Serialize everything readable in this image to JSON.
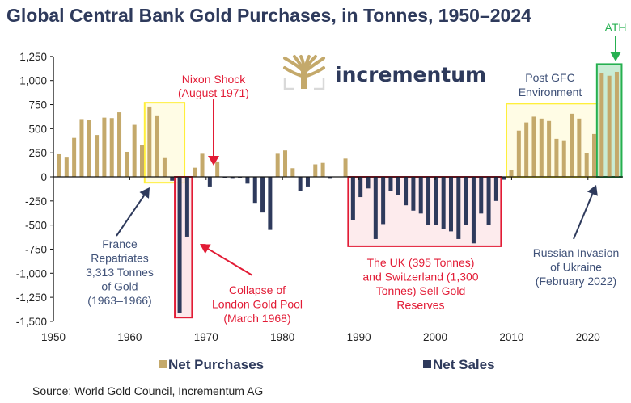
{
  "chart_data": {
    "type": "bar",
    "title": "Global Central Bank Gold Purchases, in Tonnes, 1950–2024",
    "xlabel": "",
    "ylabel": "",
    "ylim": [
      -1500,
      1250
    ],
    "yticks": [
      1250,
      1000,
      750,
      500,
      250,
      0,
      -250,
      -500,
      -750,
      -1000,
      -1250,
      -1500
    ],
    "ytick_labels": [
      "1,250",
      "1,000",
      "750",
      "500",
      "250",
      "0",
      "-250",
      "-500",
      "-750",
      "-1,000",
      "-1,250",
      "-1,500"
    ],
    "xticks": [
      1950,
      1960,
      1970,
      1980,
      1990,
      2000,
      2010,
      2020
    ],
    "xtick_labels": [
      "1950",
      "1960",
      "1970",
      "1980",
      "1990",
      "2000",
      "2010",
      "2020"
    ],
    "grid": false,
    "legend_position": "bottom",
    "colors": {
      "purchases": "#c4a96b",
      "sales": "#2e3a5c"
    },
    "series": [
      {
        "name": "Net Purchases",
        "color": "#c4a96b"
      },
      {
        "name": "Net Sales",
        "color": "#2e3a5c"
      }
    ],
    "x": [
      1950,
      1951,
      1952,
      1953,
      1954,
      1955,
      1956,
      1957,
      1958,
      1959,
      1960,
      1961,
      1962,
      1963,
      1964,
      1965,
      1966,
      1967,
      1968,
      1969,
      1970,
      1971,
      1972,
      1973,
      1974,
      1975,
      1976,
      1977,
      1978,
      1979,
      1980,
      1981,
      1982,
      1983,
      1984,
      1985,
      1986,
      1987,
      1988,
      1989,
      1990,
      1991,
      1992,
      1993,
      1994,
      1995,
      1996,
      1997,
      1998,
      1999,
      2000,
      2001,
      2002,
      2003,
      2004,
      2005,
      2006,
      2007,
      2008,
      2009,
      2010,
      2011,
      2012,
      2013,
      2014,
      2015,
      2016,
      2017,
      2018,
      2019,
      2020,
      2021,
      2022,
      2023,
      2024
    ],
    "values": [
      235,
      200,
      405,
      600,
      590,
      435,
      615,
      610,
      670,
      260,
      540,
      330,
      730,
      630,
      195,
      -40,
      -1410,
      -620,
      95,
      240,
      -100,
      160,
      -10,
      -20,
      -10,
      -70,
      -270,
      -370,
      -550,
      240,
      275,
      90,
      -150,
      -100,
      130,
      145,
      -20,
      0,
      190,
      -445,
      -210,
      -120,
      -645,
      -490,
      -150,
      -185,
      -295,
      -350,
      -380,
      -495,
      -500,
      -540,
      -565,
      -645,
      -495,
      -690,
      -380,
      -500,
      -250,
      -30,
      75,
      480,
      565,
      625,
      605,
      580,
      395,
      380,
      655,
      605,
      250,
      445,
      1080,
      1050,
      1090
    ],
    "highlight_boxes": [
      {
        "name": "france-box",
        "from": 1962,
        "to": 1966,
        "ymin": -60,
        "ymax": 770,
        "color": "#ffef3b",
        "fill": "#fffbe0"
      },
      {
        "name": "london-pool-box",
        "from": 1966,
        "to": 1967,
        "ymin": -1460,
        "ymax": 0,
        "color": "#e21b35",
        "fill": "#fbe3e6"
      },
      {
        "name": "uk-swiss-box",
        "from": 1989,
        "to": 2008,
        "ymin": -720,
        "ymax": 0,
        "color": "#e21b35",
        "fill": "#fde8ea"
      },
      {
        "name": "post-gfc-box",
        "from": 2010,
        "to": 2021,
        "ymin": 0,
        "ymax": 760,
        "color": "#ffef3b",
        "fill": "#fffbe0"
      },
      {
        "name": "ath-box",
        "from": 2022,
        "to": 2024,
        "ymin": 0,
        "ymax": 1170,
        "color": "#26b050",
        "fill": "#bfe9cc"
      }
    ],
    "annotations": [
      {
        "name": "nixon-shock",
        "lines": [
          "Nixon Shock",
          "(August 1971)"
        ],
        "color": "#e21b35"
      },
      {
        "name": "france-repatriates",
        "lines": [
          "France",
          "Repatriates",
          "3,313 Tonnes",
          "of Gold",
          "(1963–1966)"
        ],
        "color": "#3f5178"
      },
      {
        "name": "london-gold-pool",
        "lines": [
          "Collapse of",
          "London Gold Pool",
          "(March 1968)"
        ],
        "color": "#e21b35"
      },
      {
        "name": "uk-switzerland",
        "lines": [
          "The UK (395 Tonnes)",
          "and Switzerland (1,300",
          "Tonnes) Sell Gold",
          "Reserves"
        ],
        "color": "#e21b35"
      },
      {
        "name": "post-gfc",
        "lines": [
          "Post GFC",
          "Environment"
        ],
        "color": "#3f5178"
      },
      {
        "name": "russian-invasion",
        "lines": [
          "Russian Invasion",
          "of Ukraine",
          "(February 2022)"
        ],
        "color": "#3f5178"
      },
      {
        "name": "ath",
        "lines": [
          "ATH"
        ],
        "color": "#26b050"
      }
    ]
  },
  "logo": {
    "text": "incrementum"
  },
  "legend": {
    "purchases_label": "Net Purchases",
    "sales_label": "Net Sales"
  },
  "source": "Source: World Gold Council, Incrementum AG"
}
